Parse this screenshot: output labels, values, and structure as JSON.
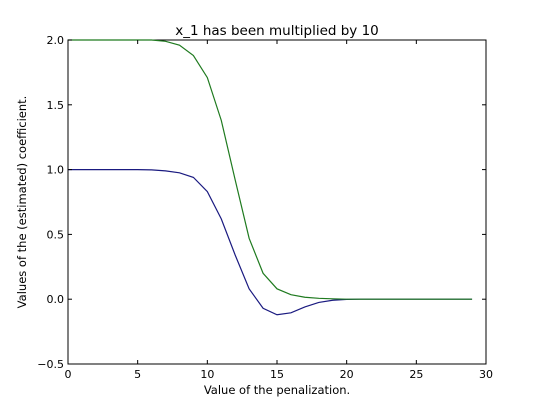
{
  "chart_data": {
    "type": "line",
    "title": "x_1 has been multiplied by 10",
    "xlabel": "Value of the penalization.",
    "ylabel": "Values of the (estimated) coefficient.",
    "xlim": [
      0,
      30
    ],
    "ylim": [
      -0.5,
      2.0
    ],
    "xticks": [
      0,
      5,
      10,
      15,
      20,
      25,
      30
    ],
    "xtick_labels": [
      "0",
      "5",
      "10",
      "15",
      "20",
      "25",
      "30"
    ],
    "yticks": [
      -0.5,
      0.0,
      0.5,
      1.0,
      1.5,
      2.0
    ],
    "ytick_labels": [
      "−0.5",
      "0.0",
      "0.5",
      "1.0",
      "1.5",
      "2.0"
    ],
    "grid": false,
    "x": [
      0,
      1,
      2,
      3,
      4,
      5,
      6,
      7,
      8,
      9,
      10,
      11,
      12,
      13,
      14,
      15,
      16,
      17,
      18,
      19,
      20,
      21,
      22,
      23,
      24,
      25,
      26,
      27,
      28,
      29
    ],
    "series": [
      {
        "color": "#1a1a80",
        "values": [
          1.0,
          1.0,
          1.0,
          1.0,
          1.0,
          1.0,
          0.998,
          0.99,
          0.975,
          0.94,
          0.83,
          0.62,
          0.34,
          0.08,
          -0.07,
          -0.12,
          -0.105,
          -0.06,
          -0.025,
          -0.008,
          -0.002,
          0.0,
          0.0,
          0.0,
          0.0,
          0.0,
          0.0,
          0.0,
          0.0,
          0.0
        ]
      },
      {
        "color": "#1f7a1f",
        "values": [
          2.0,
          2.0,
          2.0,
          2.0,
          2.0,
          2.0,
          2.0,
          1.99,
          1.96,
          1.88,
          1.71,
          1.38,
          0.92,
          0.47,
          0.2,
          0.08,
          0.035,
          0.015,
          0.007,
          0.003,
          0.0,
          0.0,
          0.0,
          0.0,
          0.0,
          0.0,
          0.0,
          0.0,
          0.0,
          0.0
        ]
      }
    ]
  }
}
